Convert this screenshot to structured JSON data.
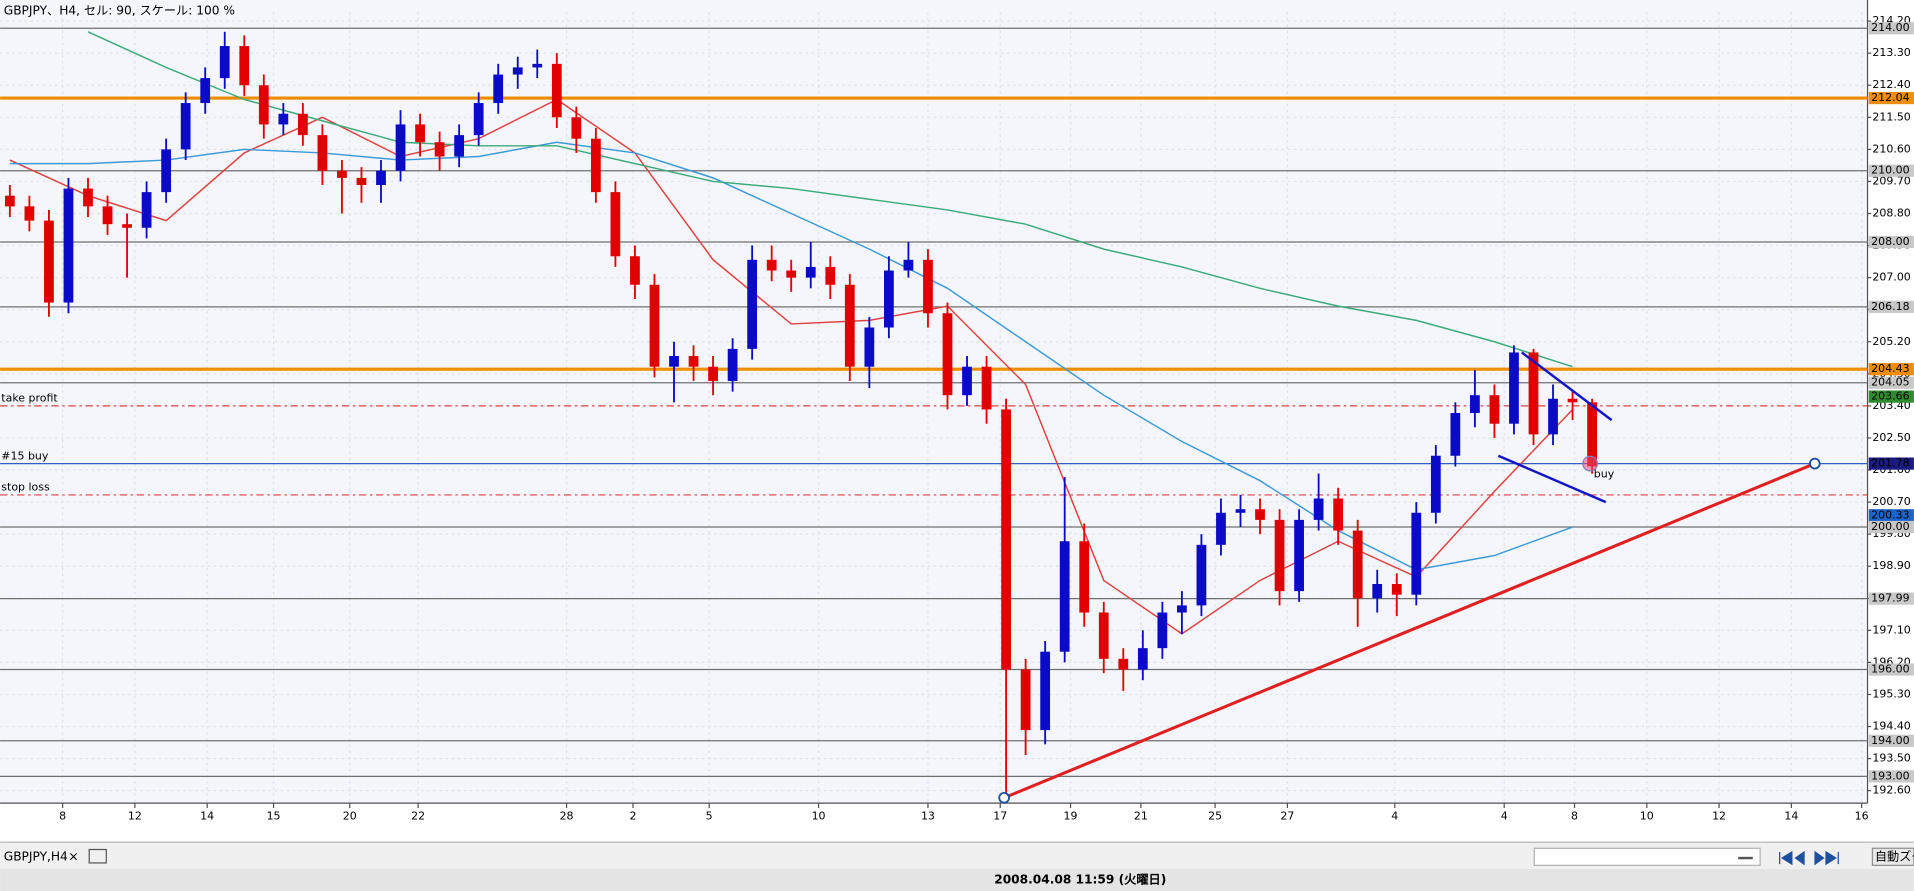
{
  "window": {
    "title": "GBPJPY、H4, セル: 90, スケール: 100 %",
    "tab": "GBPJPY,H4",
    "tab_close": "×",
    "status": "2008.04.08 11:59 (火曜日)",
    "zoom": "自動ズーム"
  },
  "chart_data": {
    "type": "candlestick",
    "colors": {
      "up": "#0a0ac8",
      "down": "#e00000"
    },
    "open": [
      209.3,
      209.0,
      208.6,
      206.3,
      209.5,
      209.0,
      208.5,
      208.4,
      209.4,
      210.6,
      211.9,
      212.6,
      213.5,
      212.4,
      211.3,
      211.6,
      211.0,
      210.0,
      209.8,
      209.6,
      210.0,
      211.3,
      210.8,
      210.4,
      211.0,
      211.9,
      212.7,
      212.9,
      213.0,
      211.5,
      210.9,
      209.4,
      207.6,
      206.8,
      204.5,
      204.8,
      204.5,
      204.1,
      205.0,
      207.5,
      207.2,
      207.0,
      207.3,
      206.8,
      204.5,
      205.6,
      207.2,
      207.5,
      206.0,
      203.7,
      204.5,
      203.3,
      196.0,
      194.3,
      196.5,
      199.6,
      197.6,
      196.3,
      196.0,
      196.6,
      197.6,
      197.8,
      199.5,
      200.4,
      200.5,
      200.2,
      198.2,
      200.2,
      200.8,
      199.9,
      198.0,
      198.4,
      198.1,
      200.4,
      202.0,
      203.2,
      203.7,
      202.9,
      204.9,
      202.6,
      203.6,
      203.5
    ],
    "high": [
      209.6,
      209.3,
      208.9,
      209.8,
      209.8,
      209.3,
      208.8,
      209.7,
      210.9,
      212.2,
      212.9,
      213.9,
      213.8,
      212.7,
      211.9,
      211.9,
      211.3,
      210.3,
      210.1,
      210.3,
      211.7,
      211.6,
      211.1,
      211.3,
      212.2,
      213.0,
      213.2,
      213.4,
      213.3,
      211.8,
      211.2,
      209.7,
      207.9,
      207.1,
      205.2,
      205.1,
      204.8,
      205.3,
      207.9,
      207.9,
      207.5,
      208.0,
      207.6,
      207.1,
      205.9,
      207.6,
      208.0,
      207.8,
      206.3,
      204.8,
      204.8,
      203.6,
      196.3,
      196.8,
      201.4,
      200.1,
      197.9,
      196.6,
      197.1,
      197.9,
      198.2,
      199.8,
      200.8,
      200.9,
      200.8,
      200.5,
      200.5,
      201.5,
      201.1,
      200.2,
      198.8,
      198.7,
      200.7,
      202.3,
      203.5,
      204.4,
      204.0,
      205.1,
      205.0,
      204.0,
      203.8,
      203.6
    ],
    "low": [
      208.7,
      208.3,
      205.9,
      206.0,
      208.7,
      208.2,
      207.0,
      208.1,
      209.1,
      210.3,
      211.6,
      212.3,
      212.1,
      210.9,
      211.0,
      210.7,
      209.6,
      208.8,
      209.1,
      209.1,
      209.7,
      210.4,
      210.0,
      210.1,
      210.7,
      211.6,
      212.3,
      212.6,
      211.2,
      210.5,
      209.1,
      207.3,
      206.4,
      204.2,
      203.5,
      204.1,
      203.7,
      203.8,
      204.7,
      206.9,
      206.6,
      206.7,
      206.4,
      204.1,
      203.9,
      205.3,
      207.0,
      205.6,
      203.3,
      203.4,
      202.9,
      192.4,
      193.6,
      193.9,
      196.2,
      197.2,
      195.9,
      195.4,
      195.7,
      196.3,
      197.0,
      197.5,
      199.2,
      200.0,
      199.8,
      197.8,
      197.9,
      199.9,
      199.5,
      197.2,
      197.6,
      197.5,
      197.8,
      200.1,
      201.7,
      202.8,
      202.5,
      202.6,
      202.3,
      202.3,
      203.0,
      201.5
    ],
    "close": [
      209.0,
      208.6,
      206.3,
      209.5,
      209.0,
      208.5,
      208.4,
      209.4,
      210.6,
      211.9,
      212.6,
      213.5,
      212.4,
      211.3,
      211.6,
      211.0,
      210.0,
      209.8,
      209.6,
      210.0,
      211.3,
      210.8,
      210.4,
      211.0,
      211.9,
      212.7,
      212.9,
      213.0,
      211.5,
      210.9,
      209.4,
      207.6,
      206.8,
      204.5,
      204.8,
      204.5,
      204.1,
      205.0,
      207.5,
      207.2,
      207.0,
      207.3,
      206.8,
      204.5,
      205.6,
      207.2,
      207.5,
      206.0,
      203.7,
      204.5,
      203.3,
      196.0,
      194.3,
      196.5,
      199.6,
      197.6,
      196.3,
      196.0,
      196.6,
      197.6,
      197.8,
      199.5,
      200.4,
      200.5,
      200.2,
      198.2,
      200.2,
      200.8,
      199.9,
      198.0,
      198.4,
      198.1,
      200.4,
      202.0,
      203.2,
      203.7,
      202.9,
      204.9,
      202.6,
      203.6,
      203.5,
      201.7
    ],
    "ylim": [
      192.25,
      214.45
    ],
    "yticks": [
      {
        "value": 192.6,
        "label": "192.60"
      },
      {
        "value": 193.5,
        "label": "193.50"
      },
      {
        "value": 194.4,
        "label": "194.40"
      },
      {
        "value": 195.3,
        "label": "195.30"
      },
      {
        "value": 196.2,
        "label": "196.20"
      },
      {
        "value": 197.1,
        "label": "197.10"
      },
      {
        "value": 198.0,
        "label": "198.00"
      },
      {
        "value": 198.9,
        "label": "198.90"
      },
      {
        "value": 199.8,
        "label": "199.80"
      },
      {
        "value": 200.7,
        "label": "200.70"
      },
      {
        "value": 201.6,
        "label": "201.60"
      },
      {
        "value": 202.5,
        "label": "202.50"
      },
      {
        "value": 203.4,
        "label": "203.40"
      },
      {
        "value": 204.3,
        "label": "204.30"
      },
      {
        "value": 205.2,
        "label": "205.20"
      },
      {
        "value": 206.1,
        "label": "206.10"
      },
      {
        "value": 207.0,
        "label": "207.00"
      },
      {
        "value": 207.9,
        "label": "207.90"
      },
      {
        "value": 208.8,
        "label": "208.80"
      },
      {
        "value": 209.7,
        "label": "209.70"
      },
      {
        "value": 210.6,
        "label": "210.60"
      },
      {
        "value": 211.5,
        "label": "211.50"
      },
      {
        "value": 212.4,
        "label": "212.40"
      },
      {
        "value": 213.3,
        "label": "213.30"
      },
      {
        "value": 214.2,
        "label": "214.20"
      }
    ],
    "xlim": [
      0,
      95.6
    ],
    "xticks": [
      {
        "value": 3.2,
        "label": "8"
      },
      {
        "value": 6.9,
        "label": "12"
      },
      {
        "value": 10.6,
        "label": "14"
      },
      {
        "value": 14.0,
        "label": "15"
      },
      {
        "value": 17.9,
        "label": "20"
      },
      {
        "value": 21.4,
        "label": "22"
      },
      {
        "value": 29.0,
        "label": "28"
      },
      {
        "value": 32.4,
        "label": "2"
      },
      {
        "value": 36.3,
        "label": "5"
      },
      {
        "value": 41.9,
        "label": "10"
      },
      {
        "value": 47.5,
        "label": "13"
      },
      {
        "value": 51.2,
        "label": "17"
      },
      {
        "value": 54.8,
        "label": "19"
      },
      {
        "value": 58.4,
        "label": "21"
      },
      {
        "value": 62.2,
        "label": "25"
      },
      {
        "value": 65.9,
        "label": "27"
      },
      {
        "value": 71.4,
        "label": "4"
      },
      {
        "value": 77.0,
        "label": "4"
      },
      {
        "value": 80.6,
        "label": "8"
      },
      {
        "value": 84.3,
        "label": "10"
      },
      {
        "value": 88.0,
        "label": "12"
      },
      {
        "value": 91.7,
        "label": "14"
      },
      {
        "value": 95.3,
        "label": "16"
      }
    ],
    "grid": true,
    "indicators": {
      "x": [
        0.5,
        4.5,
        8.5,
        12.5,
        16.5,
        20.5,
        24.5,
        28.5,
        32.5,
        36.5,
        40.5,
        44.5,
        48.5,
        52.5,
        56.5,
        60.5,
        64.5,
        68.5,
        72.5,
        76.5,
        80.5
      ],
      "series": [
        {
          "color": "#e04040",
          "values": [
            210.3,
            209.3,
            208.6,
            210.5,
            211.5,
            210.4,
            210.9,
            212.0,
            210.5,
            207.5,
            205.7,
            205.8,
            206.2,
            204.0,
            198.5,
            197.0,
            198.5,
            199.6,
            198.6,
            201.0,
            203.3
          ]
        },
        {
          "color": "#3c9ad8",
          "values": [
            210.2,
            210.2,
            210.3,
            210.6,
            210.5,
            210.3,
            210.4,
            210.8,
            210.5,
            209.8,
            208.8,
            207.8,
            206.7,
            205.2,
            203.7,
            202.4,
            201.3,
            199.9,
            198.8,
            199.2,
            200.0
          ]
        },
        {
          "color": "#3caa7a",
          "values": [
            null,
            213.9,
            212.9,
            212.0,
            211.4,
            210.8,
            210.7,
            210.7,
            210.2,
            209.7,
            209.5,
            209.2,
            208.9,
            208.5,
            207.8,
            207.3,
            206.7,
            206.2,
            205.8,
            205.2,
            204.5
          ]
        }
      ]
    },
    "levels": [
      {
        "value": 214.0,
        "label": "214.00",
        "color": "#707070",
        "box": "#c8c8c8",
        "ink": "#000000"
      },
      {
        "value": 212.04,
        "label": "212.04",
        "color": "#f08c00",
        "box": "#f08c00",
        "ink": "#000000",
        "width": 2.5
      },
      {
        "value": 210.0,
        "label": "210.00",
        "color": "#707070",
        "box": "#c8c8c8",
        "ink": "#000000"
      },
      {
        "value": 208.0,
        "label": "208.00",
        "color": "#707070",
        "box": "#c8c8c8",
        "ink": "#000000"
      },
      {
        "value": 206.18,
        "label": "206.18",
        "color": "#707070",
        "box": "#c8c8c8",
        "ink": "#000000"
      },
      {
        "value": 204.43,
        "label": "204.43",
        "color": "#f08c00",
        "box": "#f08c00",
        "ink": "#000000",
        "width": 2.5
      },
      {
        "value": 204.05,
        "label": "204.05",
        "color": "#707070",
        "box": "#c8c8c8",
        "ink": "#000000"
      },
      {
        "value": 203.66,
        "label": "203.66",
        "box": "#2e8b2e",
        "ink": "#ffffff"
      },
      {
        "value": 203.4,
        "color": "#e04040",
        "dash": true,
        "text": "take profit"
      },
      {
        "value": 201.78,
        "label": "201.78",
        "color": "#3060c0",
        "box": "#1a1a80",
        "ink": "#ffffff",
        "text": "#15 buy"
      },
      {
        "value": 200.9,
        "color": "#e04040",
        "dash": true,
        "text": "stop loss"
      },
      {
        "value": 200.33,
        "label": "200.33",
        "box": "#1e64c8",
        "ink": "#ffffff"
      },
      {
        "value": 200.0,
        "label": "200.00",
        "color": "#707070",
        "box": "#c8c8c8",
        "ink": "#000000"
      },
      {
        "value": 197.99,
        "label": "197.99",
        "color": "#707070",
        "box": "#c8c8c8",
        "ink": "#000000"
      },
      {
        "value": 196.0,
        "label": "196.00",
        "color": "#707070",
        "box": "#c8c8c8",
        "ink": "#000000"
      },
      {
        "value": 194.0,
        "label": "194.00",
        "color": "#707070",
        "box": "#c8c8c8",
        "ink": "#000000"
      },
      {
        "value": 193.0,
        "label": "193.00",
        "color": "#707070",
        "box": "#c8c8c8",
        "ink": "#000000"
      }
    ],
    "trendlines": [
      {
        "color": "#e02020",
        "width": 2.5,
        "ends": true,
        "x": [
          51.4,
          92.9
        ],
        "y": [
          192.4,
          201.78
        ]
      },
      {
        "color": "#1414c8",
        "width": 2,
        "x": [
          77.9,
          82.5
        ],
        "y": [
          204.9,
          203.0
        ]
      },
      {
        "color": "#1414c8",
        "width": 2,
        "x": [
          76.7,
          82.2
        ],
        "y": [
          202.0,
          200.7
        ]
      }
    ],
    "order": {
      "x": 81.4,
      "value": 201.78,
      "label": "buy"
    }
  }
}
